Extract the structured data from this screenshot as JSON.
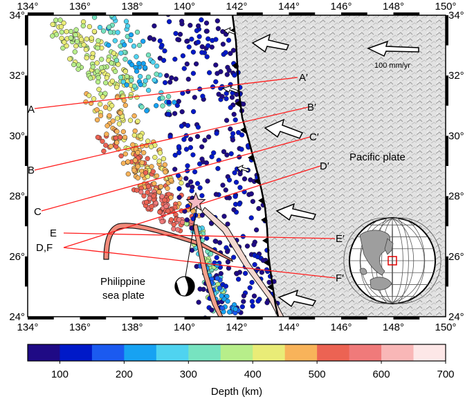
{
  "lon_ticks": [
    "134°",
    "136°",
    "138°",
    "140°",
    "142°",
    "144°",
    "146°",
    "148°",
    "150°"
  ],
  "lat_ticks": [
    "34°",
    "32°",
    "30°",
    "28°",
    "26°",
    "24°"
  ],
  "profiles": [
    {
      "start": "A",
      "end": "A′"
    },
    {
      "start": "B",
      "end": "B′"
    },
    {
      "start": "C",
      "end": "C′"
    },
    {
      "start": "D",
      "end": "D′"
    },
    {
      "start": "E",
      "end": "E′"
    },
    {
      "start": "F",
      "end": "F′"
    }
  ],
  "df_label": "D,F",
  "plates": {
    "pacific": "Pacific plate",
    "philippine_line1": "Philippine",
    "philippine_line2": "sea plate"
  },
  "scale_label": "100 mm/yr",
  "colorbar": {
    "title": "Depth (km)",
    "ticks": [
      "100",
      "200",
      "300",
      "400",
      "500",
      "600",
      "700"
    ],
    "colors": [
      "#1f0a85",
      "#0019c8",
      "#1b5af0",
      "#17a2f2",
      "#4fd3f0",
      "#77e3c0",
      "#b7ee8a",
      "#e9ec77",
      "#f8b35a",
      "#ec6353",
      "#f07a7a",
      "#f9b7b7",
      "#fde7e7"
    ]
  },
  "event_color": "#f4b9c4",
  "line_color": "#ff1c1c"
}
